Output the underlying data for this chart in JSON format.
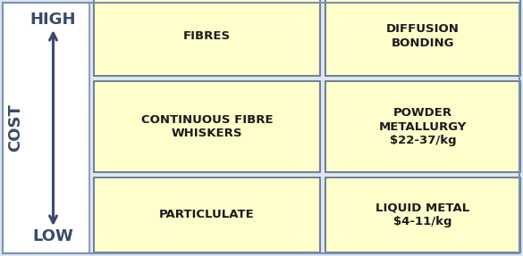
{
  "bg_outer": "#dce6f0",
  "bg_left_panel": "#ffffff",
  "cell_color": "#ffffcc",
  "border_color": "#5a6a8a",
  "text_color": "#1a1a1a",
  "axis_label_color": "#3a4a6a",
  "arrow_color": "#3a4a6a",
  "outer_border_color": "#7a90b0",
  "left_cells": [
    "FIBRES",
    "CONTINUOUS FIBRE\nWHISKERS",
    "PARTICLULATE"
  ],
  "right_cells": [
    "DIFFUSION\nBONDING",
    "POWDER\nMETALLURGY\n$22-37/kg",
    "LIQUID METAL\n$4-11/kg"
  ],
  "high_label": "HIGH",
  "low_label": "LOW",
  "cost_label": "COST",
  "fig_width": 5.85,
  "fig_height": 2.87,
  "dpi": 100
}
